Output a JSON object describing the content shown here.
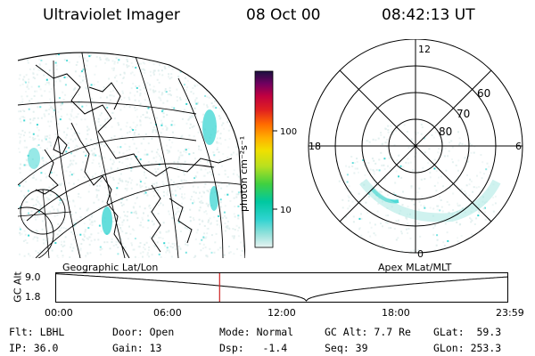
{
  "header": {
    "instrument": "Ultraviolet Imager",
    "date": "08 Oct 00",
    "time": "08:42:13 UT"
  },
  "colors": {
    "aurora": "#2fd3d0",
    "background_noise": "#dfeeed",
    "time_marker": "#cc2222"
  },
  "colorbar": {
    "unit_label": "photon cm⁻²s⁻¹",
    "ticks": [
      {
        "label": "100",
        "value": 100
      },
      {
        "label": "10",
        "value": 10
      }
    ],
    "scale": "log",
    "stops": [
      "#e8f4f2",
      "#8fe0da",
      "#2fd3d0",
      "#00c8a0",
      "#40d040",
      "#b8e020",
      "#f0e000",
      "#ffb000",
      "#ff6a00",
      "#e02020",
      "#c00040",
      "#700060",
      "#1a1040"
    ]
  },
  "left_map": {
    "label": "Geographic Lat/Lon"
  },
  "right_map": {
    "label": "Apex MLat/MLT",
    "mlt_labels": [
      "12",
      "18",
      "6",
      "0"
    ],
    "lat_labels": [
      "60",
      "70",
      "80"
    ]
  },
  "timeline": {
    "axis_label": "GC Alt",
    "y_ticks": [
      "9.0",
      "1.8"
    ],
    "x_ticks": [
      "00:00",
      "06:00",
      "12:00",
      "18:00",
      "23:59"
    ],
    "y_range": [
      1.8,
      9.0
    ],
    "current_time_hours": 8.7
  },
  "info": {
    "row1": [
      {
        "key": "Flt:",
        "value": "LBHL"
      },
      {
        "key": "Door:",
        "value": "Open"
      },
      {
        "key": "Mode:",
        "value": "Normal"
      },
      {
        "key": "GC Alt:",
        "value": "7.7 Re"
      },
      {
        "key": "GLat:",
        "value": "59.3"
      }
    ],
    "row2": [
      {
        "key": "IP:",
        "value": "36.0"
      },
      {
        "key": "Gain:",
        "value": "13"
      },
      {
        "key": "Dsp:",
        "value": "-1.4"
      },
      {
        "key": "Seq:",
        "value": "39"
      },
      {
        "key": "GLon:",
        "value": "253.3"
      }
    ]
  }
}
